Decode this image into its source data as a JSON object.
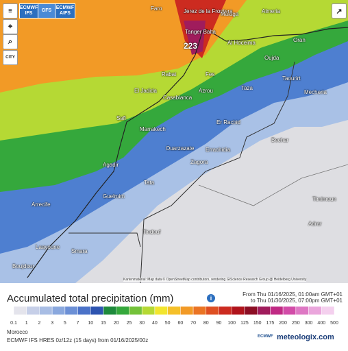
{
  "model_buttons": [
    "ECMWF IFS",
    "GFS",
    "ECMWF AIFS"
  ],
  "map": {
    "places": [
      "Faro",
      "Jerez de la Frontera",
      "Malaga",
      "Almeria",
      "Tanger Balta",
      "Al Hoceima",
      "Oran",
      "Oujda",
      "Taourirt",
      "Mecheria",
      "Rabat",
      "Fes",
      "Taza",
      "El Jadida",
      "Casablanca",
      "Azrou",
      "Safi",
      "Marrakech",
      "Er Rachid",
      "Bechar",
      "Ouarzazate",
      "Errachidia",
      "Zagora",
      "Agadir",
      "Tata",
      "Guelmim",
      "Arrecife",
      "Tindouf",
      "Timimoun",
      "Adrar",
      "Laayoune",
      "Smara",
      "Boujdour"
    ],
    "max_label": "223",
    "city_button": "CITY",
    "attribution": "Kartenmaterial: Map data © OpenStreetMap contributors, rendering GIScience Research Group @ Heidelberg University"
  },
  "title": "Accumulated total precipitation (mm)",
  "period": {
    "from": "From Thu 01/16/2025, 01:00am GMT+01",
    "to": "to Thu 01/30/2025, 07:00pm GMT+01"
  },
  "legend": {
    "labels": [
      "0.1",
      "1",
      "2",
      "3",
      "5",
      "7",
      "10",
      "15",
      "20",
      "25",
      "30",
      "40",
      "50",
      "60",
      "70",
      "80",
      "90",
      "100",
      "125",
      "150",
      "175",
      "200",
      "250",
      "300",
      "400",
      "500"
    ],
    "colors": [
      "#e4e4ec",
      "#c6cfe8",
      "#a8bde4",
      "#8aa8de",
      "#6c90d6",
      "#4b72c8",
      "#2d54b0",
      "#1e8a3c",
      "#35a83c",
      "#74c23a",
      "#b5d934",
      "#f2e52e",
      "#f5c02a",
      "#f29a26",
      "#ea7424",
      "#de4f22",
      "#cc2b20",
      "#b0141c",
      "#8c0e24",
      "#a01c5c",
      "#c02a84",
      "#d24ca8",
      "#de78c4",
      "#eaa6dc",
      "#f4d0ee"
    ]
  },
  "region": "Morocco",
  "model_run": "ECMWF IFS HRES 0z/12z (15 days) from 01/16/2025/00z",
  "logos": {
    "ecmwf": "ECMWF",
    "site": "meteologix.com"
  }
}
